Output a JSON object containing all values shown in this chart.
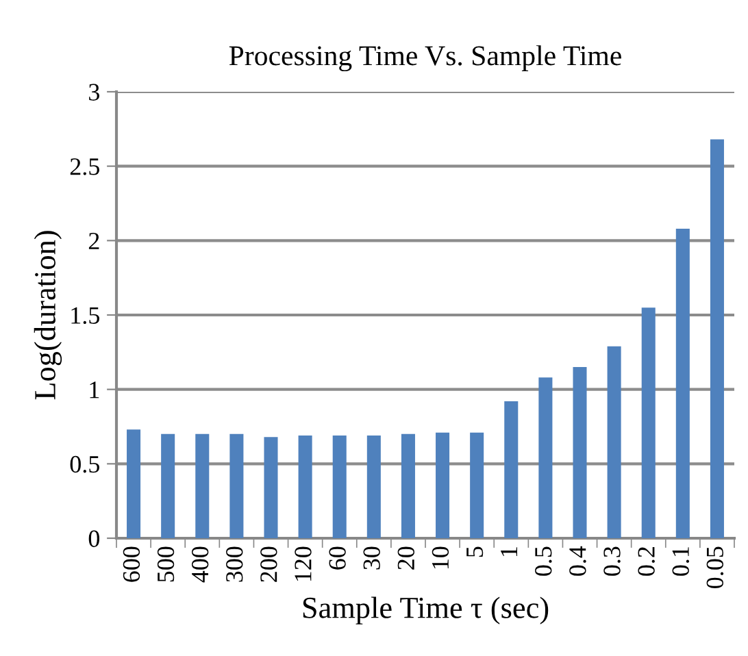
{
  "chart_data": {
    "type": "bar",
    "title": "Processing Time Vs. Sample Time",
    "xlabel": "Sample Time τ (sec)",
    "ylabel": "Log(duration)",
    "categories": [
      "600",
      "500",
      "400",
      "300",
      "200",
      "120",
      "60",
      "30",
      "20",
      "10",
      "5",
      "1",
      "0.5",
      "0.4",
      "0.3",
      "0.2",
      "0.1",
      "0.05"
    ],
    "values": [
      0.73,
      0.7,
      0.7,
      0.7,
      0.68,
      0.69,
      0.69,
      0.69,
      0.7,
      0.71,
      0.71,
      0.92,
      1.08,
      1.15,
      1.29,
      1.55,
      2.08,
      2.68
    ],
    "color": "#4f81bd",
    "ylim": [
      0,
      3
    ],
    "yticks": [
      0,
      0.5,
      1,
      1.5,
      2,
      2.5,
      3
    ],
    "grid": "y",
    "legend": false
  }
}
